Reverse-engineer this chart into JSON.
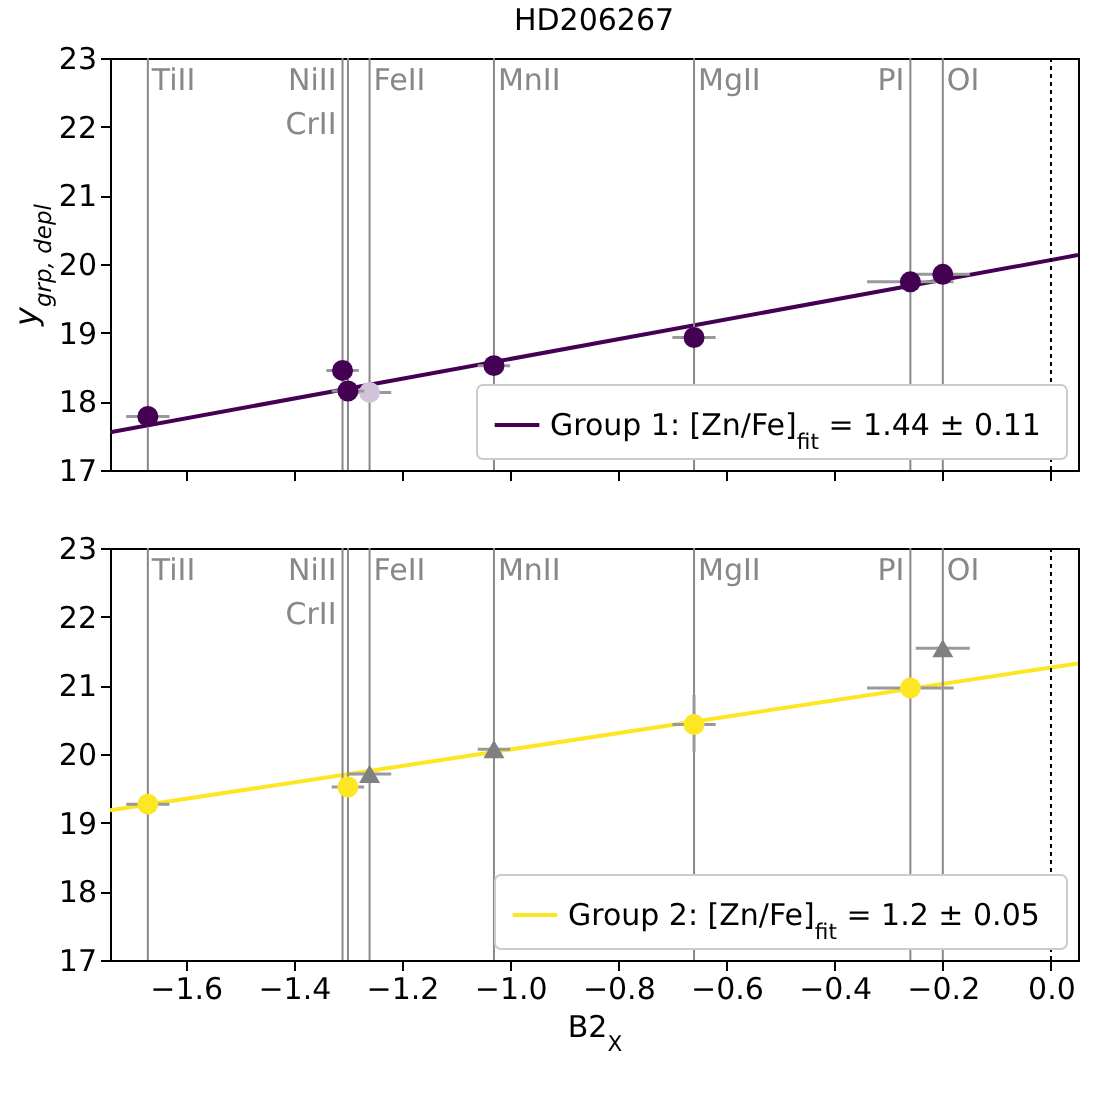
{
  "chart_data": [
    {
      "type": "scatter",
      "title": "HD206267",
      "ylabel": "y$_{grp, depl}$",
      "xlim": [
        -1.74,
        0.05
      ],
      "xticks": [
        -1.6,
        -1.4,
        -1.2,
        -1.0,
        -0.8,
        -0.6,
        -0.4,
        -0.2,
        0
      ],
      "ylim": [
        17,
        23
      ],
      "yticks": [
        17,
        18,
        19,
        20,
        21,
        22,
        23
      ],
      "tick_labels": "y",
      "legend": "bottom right",
      "ref_lines": [
        {
          "axis": "x",
          "value": -1.67,
          "label": "TiII"
        },
        {
          "axis": "x",
          "value": -1.31,
          "label": "NiII"
        },
        {
          "axis": "x",
          "value": -1.3,
          "label": "CrII"
        },
        {
          "axis": "x",
          "value": -1.26,
          "label": "FeII"
        },
        {
          "axis": "x",
          "value": -1.03,
          "label": "MnII"
        },
        {
          "axis": "x",
          "value": -0.66,
          "label": "MgII"
        },
        {
          "axis": "x",
          "value": -0.26,
          "label": "PI"
        },
        {
          "axis": "x",
          "value": -0.2,
          "label": "OI"
        },
        {
          "axis": "x",
          "value": 0,
          "line_style": "dotted"
        }
      ],
      "series": [
        {
          "name": "Group 1: [Zn/Fe]$_{fit}$ = 1.44 ± 0.11",
          "type": "line",
          "color": "#440154",
          "x": [
            -1.74,
            0.05
          ],
          "values": [
            17.55,
            20.13
          ]
        },
        {
          "type": "scatter",
          "marker": "circle",
          "color": "#d2c3da",
          "x": [
            -1.26
          ],
          "values": [
            18.13
          ],
          "xerrors": [
            0.04
          ]
        },
        {
          "type": "scatter",
          "marker": "circle",
          "color": "#440154",
          "x": [
            -1.67,
            -1.31,
            -1.3,
            -1.03,
            -0.66,
            -0.26,
            -0.2
          ],
          "values": [
            17.78,
            18.45,
            18.15,
            18.52,
            18.93,
            19.74,
            19.85
          ],
          "xerrors": [
            0.04,
            0.03,
            0.03,
            0.03,
            0.04,
            0.08,
            0.05
          ]
        }
      ]
    },
    {
      "type": "scatter",
      "xlabel": "B2$_{X}$",
      "xlim": [
        -1.74,
        0.05
      ],
      "xticks": [
        {
          "value": -1.6,
          "label": "−1.6"
        },
        {
          "value": -1.4,
          "label": "−1.4"
        },
        {
          "value": -1.2,
          "label": "−1.2"
        },
        {
          "value": -1.0,
          "label": "−1.0"
        },
        {
          "value": -0.8,
          "label": "−0.8"
        },
        {
          "value": -0.6,
          "label": "−0.6"
        },
        {
          "value": -0.4,
          "label": "−0.4"
        },
        {
          "value": -0.2,
          "label": "−0.2"
        },
        {
          "value": 0,
          "label": "0.0"
        }
      ],
      "ylim": [
        17,
        23
      ],
      "yticks": [
        17,
        18,
        19,
        20,
        21,
        22,
        23
      ],
      "legend": "bottom right",
      "ref_lines": [
        {
          "axis": "x",
          "value": -1.67,
          "label": "TiII"
        },
        {
          "axis": "x",
          "value": -1.31,
          "label": "NiII"
        },
        {
          "axis": "x",
          "value": -1.3,
          "label": "CrII"
        },
        {
          "axis": "x",
          "value": -1.26,
          "label": "FeII"
        },
        {
          "axis": "x",
          "value": -1.03,
          "label": "MnII"
        },
        {
          "axis": "x",
          "value": -0.66,
          "label": "MgII"
        },
        {
          "axis": "x",
          "value": -0.26,
          "label": "PI"
        },
        {
          "axis": "x",
          "value": -0.2,
          "label": "OI"
        },
        {
          "axis": "x",
          "value": 0,
          "line_style": "dotted"
        }
      ],
      "series": [
        {
          "name": "Group 2: [Zn/Fe]$_{fit}$ = 1.2 ± 0.05",
          "type": "line",
          "color": "#fde725",
          "x": [
            -1.74,
            0.05
          ],
          "values": [
            19.18,
            21.32
          ]
        },
        {
          "type": "scatter",
          "marker": "triangle",
          "color": "#808080",
          "x": [
            -1.26,
            -1.03,
            -0.2
          ],
          "values": [
            19.71,
            20.07,
            21.54
          ],
          "xerrors": [
            0.04,
            0.03,
            0.05
          ]
        },
        {
          "type": "scatter",
          "marker": "circle",
          "color": "#fde725",
          "x": [
            -1.67,
            -1.3,
            -0.66,
            -0.26
          ],
          "values": [
            19.27,
            19.52,
            20.43,
            20.96
          ],
          "xerrors": [
            0.04,
            0.03,
            0.04,
            0.08
          ],
          "errors": [
            null,
            null,
            [
              20.03,
              20.86
            ],
            null
          ]
        }
      ]
    }
  ]
}
